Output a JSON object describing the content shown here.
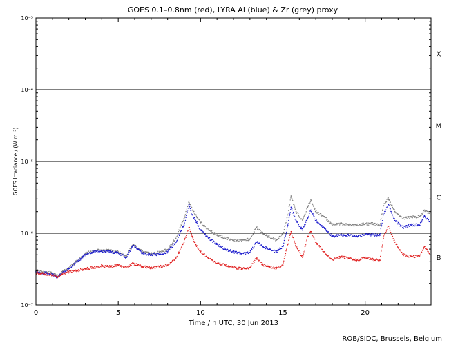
{
  "chart_data": {
    "type": "scatter",
    "title": "GOES 0.1–0.8nm (red), LYRA Al (blue) & Zr (grey) proxy",
    "xlabel": "Time / h UTC, 30 Jun 2013",
    "ylabel": "GOES Irradiance / (W m⁻²)",
    "xlim": [
      0,
      24
    ],
    "x_ticks": [
      0,
      5,
      10,
      15,
      20
    ],
    "x_tick_labels": [
      "0",
      "5",
      "10",
      "15",
      "20"
    ],
    "y_scale": "log",
    "ylim": [
      1e-07,
      0.001
    ],
    "y_ticks": [
      1e-07,
      1e-06,
      1e-05,
      0.0001,
      0.001
    ],
    "y_tick_labels": [
      "10⁻⁷",
      "10⁻⁶",
      "10⁻⁵",
      "10⁻⁴",
      "10⁻³"
    ],
    "flare_class_lines": [
      1e-06,
      1e-05,
      0.0001
    ],
    "flare_classes": [
      {
        "label": "X",
        "value": 0.00032
      },
      {
        "label": "M",
        "value": 3.2e-05
      },
      {
        "label": "C",
        "value": 3.2e-06
      },
      {
        "label": "B",
        "value": 4.6e-07
      }
    ],
    "series": [
      {
        "color": "#e02020",
        "x": [
          0,
          0.5,
          1.0,
          1.3,
          1.6,
          2.0,
          2.5,
          3.0,
          3.5,
          4.0,
          4.5,
          5.0,
          5.5,
          5.9,
          6.5,
          7.0,
          7.5,
          8.0,
          8.5,
          9.0,
          9.3,
          9.5,
          9.7,
          10.0,
          10.5,
          11.0,
          11.5,
          12.0,
          12.5,
          13.0,
          13.4,
          13.8,
          14.2,
          14.6,
          15.0,
          15.3,
          15.5,
          15.8,
          16.2,
          16.5,
          16.7,
          17.0,
          17.5,
          18.0,
          18.5,
          19.0,
          19.5,
          20.0,
          20.5,
          20.9,
          21.1,
          21.4,
          21.8,
          22.3,
          22.8,
          23.3,
          23.6,
          23.9
        ],
        "y": [
          2.8e-07,
          2.7e-07,
          2.6e-07,
          2.4e-07,
          2.7e-07,
          2.9e-07,
          3e-07,
          3.2e-07,
          3.3e-07,
          3.5e-07,
          3.4e-07,
          3.6e-07,
          3.3e-07,
          3.8e-07,
          3.4e-07,
          3.3e-07,
          3.4e-07,
          3.6e-07,
          4.5e-07,
          7.5e-07,
          1.2e-06,
          9e-07,
          7e-07,
          5.5e-07,
          4.5e-07,
          3.8e-07,
          3.6e-07,
          3.3e-07,
          3.2e-07,
          3.3e-07,
          4.5e-07,
          3.6e-07,
          3.4e-07,
          3.2e-07,
          3.6e-07,
          7e-07,
          1.05e-06,
          6.5e-07,
          4.6e-07,
          9e-07,
          1.05e-06,
          7.5e-07,
          5.5e-07,
          4.3e-07,
          4.7e-07,
          4.5e-07,
          4.2e-07,
          4.6e-07,
          4.3e-07,
          4.2e-07,
          8.5e-07,
          1.25e-06,
          7.5e-07,
          5e-07,
          4.7e-07,
          4.8e-07,
          6.5e-07,
          5.2e-07
        ]
      },
      {
        "color": "#1a1acc",
        "x": [
          0,
          0.5,
          1.0,
          1.3,
          1.6,
          2.0,
          2.5,
          3.0,
          3.5,
          4.0,
          4.5,
          5.0,
          5.5,
          5.9,
          6.5,
          7.0,
          7.5,
          8.0,
          8.5,
          9.0,
          9.3,
          9.5,
          9.7,
          10.0,
          10.5,
          11.0,
          11.5,
          12.0,
          12.5,
          13.0,
          13.4,
          13.8,
          14.2,
          14.6,
          15.0,
          15.3,
          15.5,
          15.8,
          16.2,
          16.5,
          16.7,
          17.0,
          17.5,
          18.0,
          18.5,
          19.0,
          19.5,
          20.0,
          20.5,
          20.9,
          21.1,
          21.4,
          21.8,
          22.3,
          22.8,
          23.3,
          23.6,
          23.9
        ],
        "y": [
          2.9e-07,
          2.8e-07,
          2.7e-07,
          2.4e-07,
          2.8e-07,
          3.2e-07,
          4e-07,
          5e-07,
          5.5e-07,
          5.6e-07,
          5.5e-07,
          5.3e-07,
          4.6e-07,
          6.8e-07,
          5.2e-07,
          5e-07,
          5.1e-07,
          5.5e-07,
          7.5e-07,
          1.3e-06,
          2.5e-06,
          1.8e-06,
          1.5e-06,
          1.1e-06,
          8.5e-07,
          7e-07,
          6e-07,
          5.5e-07,
          5.2e-07,
          5.4e-07,
          7.5e-07,
          6.5e-07,
          6e-07,
          5.5e-07,
          6.5e-07,
          1.3e-06,
          2.3e-06,
          1.5e-06,
          1.1e-06,
          1.6e-06,
          2.1e-06,
          1.5e-06,
          1.2e-06,
          9e-07,
          9.5e-07,
          9.3e-07,
          9e-07,
          9.6e-07,
          9.5e-07,
          9.4e-07,
          1.8e-06,
          2.5e-06,
          1.5e-06,
          1.2e-06,
          1.3e-06,
          1.3e-06,
          1.75e-06,
          1.45e-06
        ]
      },
      {
        "color": "#808080",
        "x": [
          0,
          0.5,
          1.0,
          1.3,
          1.6,
          2.0,
          2.5,
          3.0,
          3.5,
          4.0,
          4.5,
          5.0,
          5.5,
          5.9,
          6.5,
          7.0,
          7.5,
          8.0,
          8.5,
          9.0,
          9.3,
          9.5,
          9.7,
          10.0,
          10.5,
          11.0,
          11.5,
          12.0,
          12.5,
          13.0,
          13.4,
          13.8,
          14.2,
          14.6,
          15.0,
          15.3,
          15.5,
          15.8,
          16.2,
          16.5,
          16.7,
          17.0,
          17.5,
          18.0,
          18.5,
          19.0,
          19.5,
          20.0,
          20.5,
          20.9,
          21.1,
          21.4,
          21.8,
          22.3,
          22.8,
          23.3,
          23.6,
          23.9
        ],
        "y": [
          3e-07,
          2.9e-07,
          2.8e-07,
          2.5e-07,
          2.9e-07,
          3.3e-07,
          4.1e-07,
          5.2e-07,
          5.7e-07,
          5.8e-07,
          5.7e-07,
          5.5e-07,
          4.8e-07,
          7e-07,
          5.4e-07,
          5.2e-07,
          5.4e-07,
          5.9e-07,
          8.5e-07,
          1.6e-06,
          2.8e-06,
          2.1e-06,
          1.8e-06,
          1.4e-06,
          1.1e-06,
          9.5e-07,
          8.5e-07,
          8e-07,
          7.8e-07,
          8.3e-07,
          1.2e-06,
          9.8e-07,
          8.8e-07,
          8e-07,
          9.5e-07,
          1.8e-06,
          3.3e-06,
          2e-06,
          1.5e-06,
          2.3e-06,
          2.9e-06,
          2e-06,
          1.7e-06,
          1.3e-06,
          1.35e-06,
          1.3e-06,
          1.3e-06,
          1.35e-06,
          1.35e-06,
          1.3e-06,
          2.4e-06,
          3.1e-06,
          2e-06,
          1.6e-06,
          1.7e-06,
          1.7e-06,
          2.1e-06,
          1.9e-06
        ]
      }
    ]
  },
  "footer": {
    "credit": "ROB/SIDC, Brussels, Belgium"
  }
}
